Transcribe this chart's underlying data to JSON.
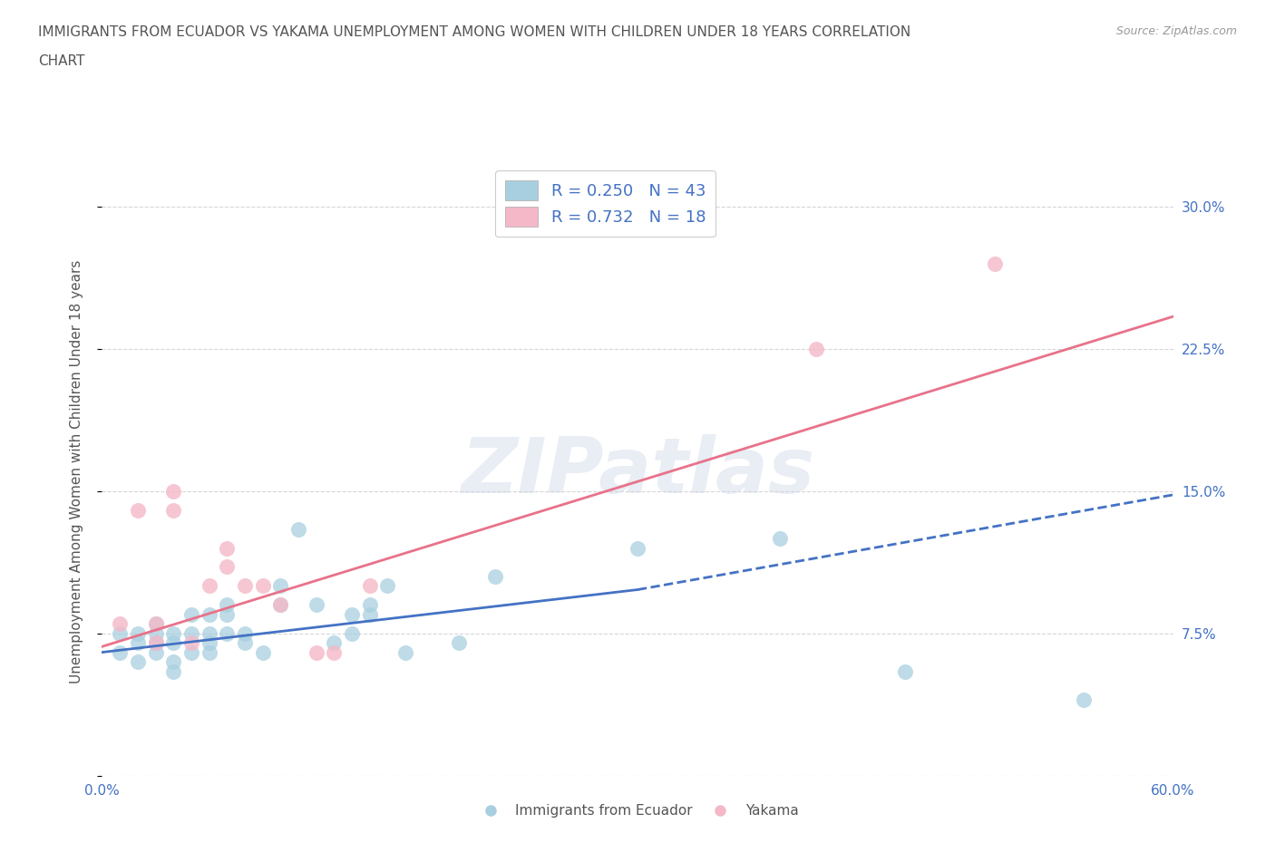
{
  "title_line1": "IMMIGRANTS FROM ECUADOR VS YAKAMA UNEMPLOYMENT AMONG WOMEN WITH CHILDREN UNDER 18 YEARS CORRELATION",
  "title_line2": "CHART",
  "source": "Source: ZipAtlas.com",
  "ylabel": "Unemployment Among Women with Children Under 18 years",
  "xlim": [
    0.0,
    0.6
  ],
  "ylim": [
    0.0,
    0.32
  ],
  "xticks": [
    0.0,
    0.1,
    0.2,
    0.3,
    0.4,
    0.5,
    0.6
  ],
  "yticks": [
    0.0,
    0.075,
    0.15,
    0.225,
    0.3
  ],
  "ytick_labels_right": [
    "",
    "7.5%",
    "15.0%",
    "22.5%",
    "30.0%"
  ],
  "xtick_labels": [
    "0.0%",
    "",
    "",
    "",
    "",
    "",
    "60.0%"
  ],
  "watermark": "ZIPatlas",
  "blue_scatter_x": [
    0.01,
    0.01,
    0.02,
    0.02,
    0.02,
    0.03,
    0.03,
    0.03,
    0.03,
    0.04,
    0.04,
    0.04,
    0.04,
    0.05,
    0.05,
    0.05,
    0.06,
    0.06,
    0.06,
    0.06,
    0.07,
    0.07,
    0.07,
    0.08,
    0.08,
    0.09,
    0.1,
    0.1,
    0.11,
    0.12,
    0.13,
    0.14,
    0.14,
    0.15,
    0.15,
    0.16,
    0.17,
    0.2,
    0.22,
    0.3,
    0.38,
    0.45,
    0.55
  ],
  "blue_scatter_y": [
    0.065,
    0.075,
    0.06,
    0.07,
    0.075,
    0.065,
    0.07,
    0.075,
    0.08,
    0.055,
    0.06,
    0.07,
    0.075,
    0.065,
    0.075,
    0.085,
    0.065,
    0.07,
    0.075,
    0.085,
    0.075,
    0.085,
    0.09,
    0.07,
    0.075,
    0.065,
    0.09,
    0.1,
    0.13,
    0.09,
    0.07,
    0.075,
    0.085,
    0.085,
    0.09,
    0.1,
    0.065,
    0.07,
    0.105,
    0.12,
    0.125,
    0.055,
    0.04
  ],
  "pink_scatter_x": [
    0.01,
    0.02,
    0.03,
    0.03,
    0.04,
    0.04,
    0.05,
    0.06,
    0.07,
    0.07,
    0.08,
    0.09,
    0.1,
    0.12,
    0.13,
    0.15,
    0.4,
    0.5
  ],
  "pink_scatter_y": [
    0.08,
    0.14,
    0.07,
    0.08,
    0.14,
    0.15,
    0.07,
    0.1,
    0.11,
    0.12,
    0.1,
    0.1,
    0.09,
    0.065,
    0.065,
    0.1,
    0.225,
    0.27
  ],
  "blue_solid_line_x": [
    0.0,
    0.3
  ],
  "blue_solid_line_y": [
    0.065,
    0.098
  ],
  "blue_dash_line_x": [
    0.3,
    0.6
  ],
  "blue_dash_line_y": [
    0.098,
    0.148
  ],
  "pink_line_x": [
    0.0,
    0.6
  ],
  "pink_line_y": [
    0.068,
    0.242
  ],
  "blue_color": "#a8cfe0",
  "pink_color": "#f4b8c8",
  "blue_line_color": "#4472c4",
  "pink_line_color": "#e8728a",
  "legend_blue_label": "R = 0.250   N = 43",
  "legend_pink_label": "R = 0.732   N = 18",
  "legend_bottom_blue": "Immigrants from Ecuador",
  "legend_bottom_pink": "Yakama",
  "background_color": "#ffffff",
  "grid_color": "#cccccc",
  "title_color": "#555555",
  "axis_label_color": "#555555",
  "tick_label_color": "#4472c4",
  "watermark_color": "#d0d8e8",
  "watermark_alpha": 0.45
}
